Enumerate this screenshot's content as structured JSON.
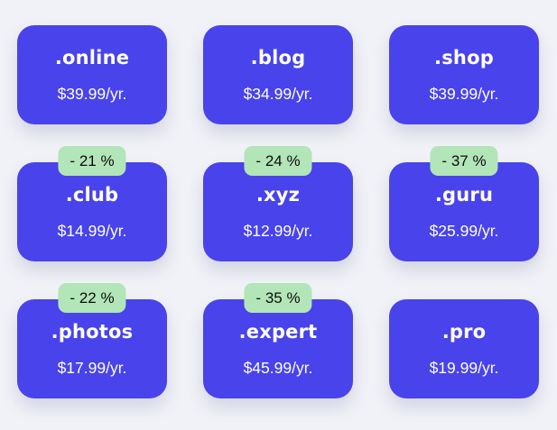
{
  "theme": {
    "page_background": "#f1f2f7",
    "card_background": "#4843eb",
    "card_text": "#ffffff",
    "badge_background": "#b2e5b8",
    "badge_text": "#0d0d0d"
  },
  "cards": [
    {
      "tld": ".online",
      "price": "$39.99/yr."
    },
    {
      "tld": ".blog",
      "price": "$34.99/yr."
    },
    {
      "tld": ".shop",
      "price": "$39.99/yr."
    },
    {
      "tld": ".club",
      "price": "$14.99/yr.",
      "discount": "- 21 %"
    },
    {
      "tld": ".xyz",
      "price": "$12.99/yr.",
      "discount": "- 24 %"
    },
    {
      "tld": ".guru",
      "price": "$25.99/yr.",
      "discount": "- 37 %"
    },
    {
      "tld": ".photos",
      "price": "$17.99/yr.",
      "discount": "- 22 %"
    },
    {
      "tld": ".expert",
      "price": "$45.99/yr.",
      "discount": "- 35 %"
    },
    {
      "tld": ".pro",
      "price": "$19.99/yr."
    }
  ]
}
